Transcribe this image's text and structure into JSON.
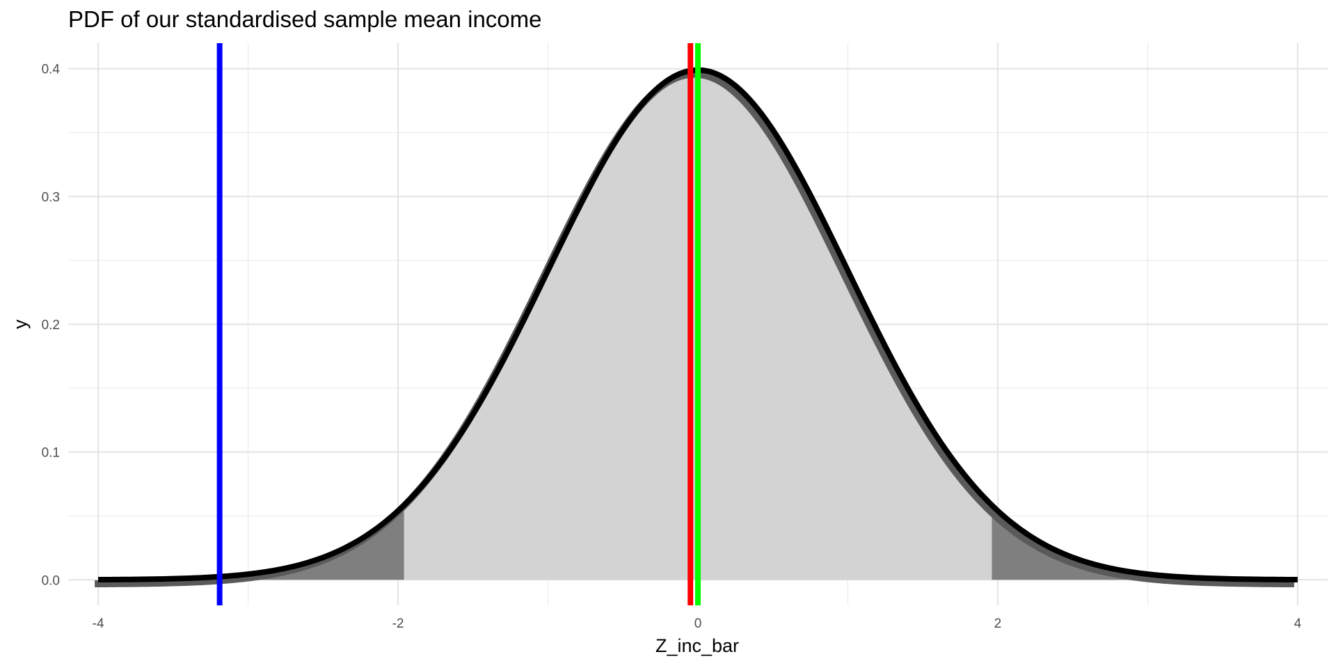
{
  "chart_data": {
    "type": "area",
    "title": "PDF of our standardised sample mean income",
    "xlabel": "Z_inc_bar",
    "ylabel": "y",
    "xlim": [
      -4.2,
      4.2
    ],
    "ylim": [
      -0.02,
      0.42
    ],
    "x_ticks": [
      -4,
      -2,
      0,
      2,
      4
    ],
    "x_tick_labels": [
      "-4",
      "-2",
      "0",
      "2",
      "4"
    ],
    "y_ticks": [
      0,
      0.1,
      0.2,
      0.3,
      0.4
    ],
    "y_tick_labels": [
      "0.0",
      "0.1",
      "0.2",
      "0.3",
      "0.4"
    ],
    "grid": true,
    "curve": {
      "distribution": "standard normal density",
      "x_range": [
        -4,
        4
      ],
      "peak": {
        "x": 0,
        "y": 0.399
      },
      "color": "#000000"
    },
    "central_region": {
      "x_range": [
        -1.96,
        1.96
      ],
      "color": "#d3d3d3"
    },
    "tail_regions": [
      {
        "x_range": [
          -4,
          -1.96
        ],
        "color": "#7f7f7f"
      },
      {
        "x_range": [
          1.96,
          4
        ],
        "color": "#7f7f7f"
      }
    ],
    "vertical_lines": [
      {
        "x": -3.19,
        "color": "#0000ff"
      },
      {
        "x": -0.05,
        "color": "#ff0000"
      },
      {
        "x": 0,
        "color": "#00ff00"
      }
    ]
  }
}
